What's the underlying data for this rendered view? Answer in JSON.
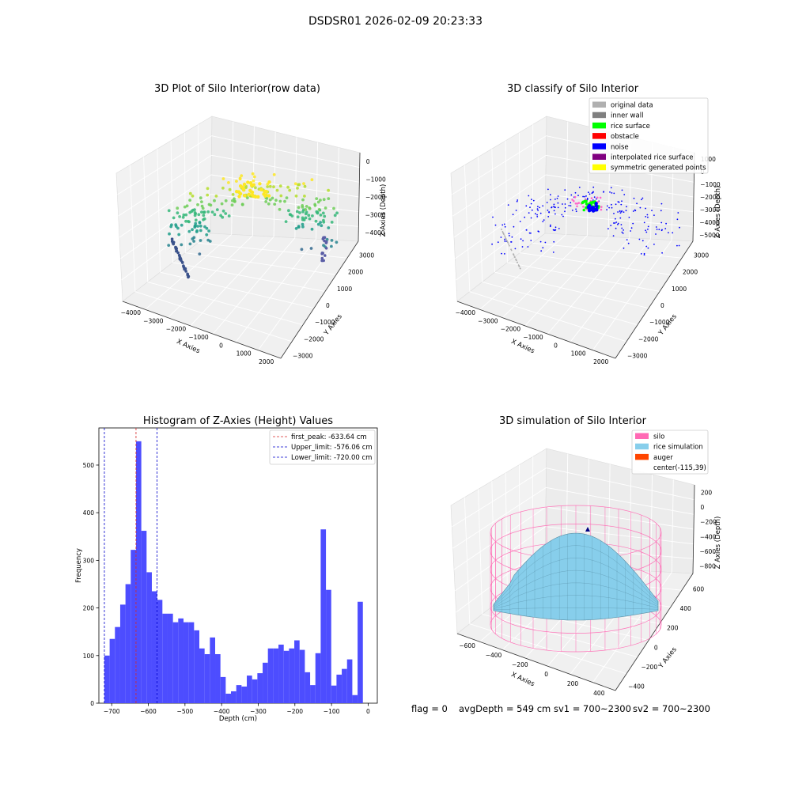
{
  "suptitle": "DSDSR01 2026-02-09 20:23:33",
  "footer": {
    "flag": "flag = 0",
    "avg_depth": "avgDepth = 549 cm",
    "sv1": "sv1 = 700~2300",
    "sv2": "sv2 = 700~2300"
  },
  "colors": {
    "hist_bar": "#4d4dff",
    "first_peak": "#d62728",
    "limits": "#0000cc",
    "silo": "#ff69b4",
    "rice": "#87ceeb",
    "auger": "#ff4500",
    "pane": "#f0f0f0"
  },
  "panels": {
    "raw": {
      "title": "3D Plot of Silo Interior(row data)",
      "xlabel": "X Axies",
      "ylabel": "Y Axies",
      "zlabel": "Z Axies (Depth)",
      "xticks": [
        "−4000",
        "−3000",
        "−2000",
        "−1000",
        "0",
        "1000",
        "2000"
      ],
      "yticks": [
        "−3000",
        "−2000",
        "−1000",
        "0",
        "1000",
        "2000",
        "3000"
      ],
      "zticks": [
        "0",
        "−1000",
        "−2000",
        "−3000",
        "−4000"
      ]
    },
    "classify": {
      "title": "3D classify of Silo Interior",
      "xlabel": "X Axies",
      "ylabel": "Y Axies",
      "zlabel": "Z Axies (Depth)",
      "xticks": [
        "−4000",
        "−3000",
        "−2000",
        "−1000",
        "0",
        "1000",
        "2000"
      ],
      "yticks": [
        "−3000",
        "−2000",
        "−1000",
        "0",
        "1000",
        "2000",
        "3000"
      ],
      "zticks": [
        "1000",
        "0",
        "−1000",
        "−2000",
        "−3000",
        "−4000",
        "−5000"
      ],
      "legend": [
        {
          "label": "original data",
          "color": "#b0b0b0"
        },
        {
          "label": "inner wall",
          "color": "#808080"
        },
        {
          "label": "rice surface",
          "color": "#00ff00"
        },
        {
          "label": "obstacle",
          "color": "#ff0000"
        },
        {
          "label": "noise",
          "color": "#0000ff"
        },
        {
          "label": "interpolated rice surface",
          "color": "#800080"
        },
        {
          "label": "symmetric generated points",
          "color": "#ffff00"
        }
      ]
    },
    "simulation": {
      "title": "3D simulation of Silo Interior",
      "xlabel": "X Axies",
      "ylabel": "Y Axies",
      "zlabel": "Z Axies (Depth)",
      "xticks": [
        "−600",
        "−400",
        "−200",
        "0",
        "200",
        "400"
      ],
      "yticks": [
        "−400",
        "−200",
        "0",
        "200",
        "400",
        "600"
      ],
      "zticks": [
        "200",
        "0",
        "−200",
        "−400",
        "−600",
        "−800"
      ],
      "legend": [
        {
          "label": "silo",
          "color": "#ff69b4"
        },
        {
          "label": "rice simulation",
          "color": "#87ceeb"
        },
        {
          "label": "auger",
          "color": "#ff4500"
        },
        {
          "label": "center(-115,39)",
          "color": ""
        }
      ]
    }
  },
  "chart_data": [
    {
      "type": "bar",
      "title": "Histogram of Z-Axies (Height) Values",
      "xlabel": "Depth (cm)",
      "ylabel": "Frequency",
      "xlim": [
        -735,
        25
      ],
      "ylim": [
        0,
        578
      ],
      "xticks": [
        -700,
        -600,
        -500,
        -400,
        -300,
        -200,
        -100,
        0
      ],
      "xtick_labels": [
        "−700",
        "−600",
        "−500",
        "−400",
        "−300",
        "−200",
        "−100",
        "0"
      ],
      "yticks": [
        0,
        100,
        200,
        300,
        400,
        500
      ],
      "bin_start": -720,
      "bin_width": 14.4,
      "values": [
        100,
        135,
        160,
        207,
        250,
        322,
        550,
        362,
        275,
        235,
        217,
        188,
        188,
        170,
        178,
        170,
        170,
        153,
        115,
        103,
        138,
        103,
        55,
        20,
        25,
        38,
        35,
        58,
        50,
        63,
        85,
        115,
        115,
        123,
        110,
        115,
        132,
        112,
        65,
        38,
        105,
        365,
        238,
        37,
        60,
        72,
        92,
        17,
        213
      ],
      "vlines": [
        {
          "label": "first_peak: -633.64 cm",
          "x": -633.64,
          "style": "peak"
        },
        {
          "label": "Upper_limit: -576.06 cm",
          "x": -576.06,
          "style": "limit"
        },
        {
          "label": "Lower_limit: -720.00 cm",
          "x": -720.0,
          "style": "limit"
        }
      ]
    }
  ]
}
